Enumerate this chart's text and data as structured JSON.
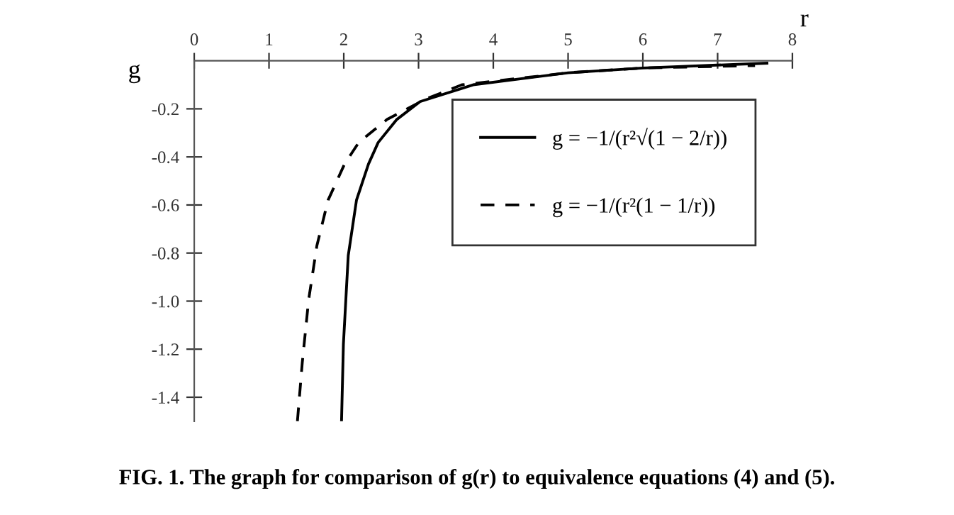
{
  "chart_data": {
    "type": "line",
    "xlabel": "r",
    "ylabel": "g",
    "xlim": [
      0,
      8
    ],
    "xticks": [
      0,
      1,
      2,
      3,
      4,
      5,
      6,
      7,
      8
    ],
    "ylim": [
      -1.5,
      0
    ],
    "yticks": [
      {
        "value": -0.2,
        "label": "-0.2"
      },
      {
        "value": -0.4,
        "label": "-0.4"
      },
      {
        "value": -0.6,
        "label": "-0.6"
      },
      {
        "value": -0.8,
        "label": "-0.8"
      },
      {
        "value": -1.0,
        "label": "-1.0"
      },
      {
        "value": -1.2,
        "label": "-1.2"
      },
      {
        "value": -1.4,
        "label": "-1.4"
      }
    ],
    "grid": false,
    "legend": "right",
    "marker": "none",
    "series": [
      {
        "name": "g = −1/(r²√(1 − 2/r))",
        "color": "#000000",
        "line_style": "solid",
        "x": [
          1.97,
          1.995,
          2.06,
          2.17,
          2.33,
          2.46,
          2.71,
          3.02,
          3.73,
          5,
          6,
          7.66
        ],
        "values": [
          -1.5,
          -1.18,
          -0.81,
          -0.58,
          -0.43,
          -0.34,
          -0.244,
          -0.17,
          -0.1,
          -0.05,
          -0.03,
          -0.01
        ]
      },
      {
        "name": "g = −1/(r²(1 − 1/r))",
        "color": "#000000",
        "line_style": "dashed",
        "x": [
          1.38,
          1.445,
          1.53,
          1.64,
          1.79,
          2.01,
          2.2,
          2.58,
          3.09,
          3.58,
          5,
          6,
          7.5
        ],
        "values": [
          -1.5,
          -1.256,
          -0.995,
          -0.77,
          -0.58,
          -0.43,
          -0.34,
          -0.244,
          -0.16,
          -0.1,
          -0.05,
          -0.03,
          -0.02
        ]
      }
    ],
    "annotations": [
      "FIG. 1. The graph for comparison of g(r) to equivalence equations (4) and (5)."
    ]
  }
}
